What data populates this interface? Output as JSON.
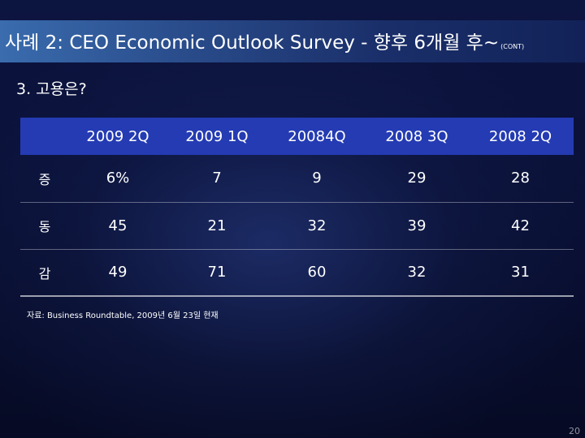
{
  "header": {
    "title": "사례 2: CEO Economic Outlook Survey - 향후 6개월 후~",
    "title_suffix": "(CONT)"
  },
  "section": {
    "subtitle": "3. 고용은?"
  },
  "table": {
    "corner": "",
    "columns": [
      "2009 2Q",
      "2009 1Q",
      "20084Q",
      "2008 3Q",
      "2008 2Q"
    ],
    "rows": [
      {
        "label": "증",
        "values": [
          "6%",
          "7",
          "9",
          "29",
          "28"
        ]
      },
      {
        "label": "동",
        "values": [
          "45",
          "21",
          "32",
          "39",
          "42"
        ]
      },
      {
        "label": "감",
        "values": [
          "49",
          "71",
          "60",
          "32",
          "31"
        ]
      }
    ]
  },
  "footer": {
    "source": "자료: Business Roundtable, 2009년 6월 23일 현재",
    "page_number": "20"
  },
  "colors": {
    "title_bar": "#2a4d8c",
    "table_header": "#243bb3",
    "background": "#0a1138",
    "text": "#ffffff"
  }
}
